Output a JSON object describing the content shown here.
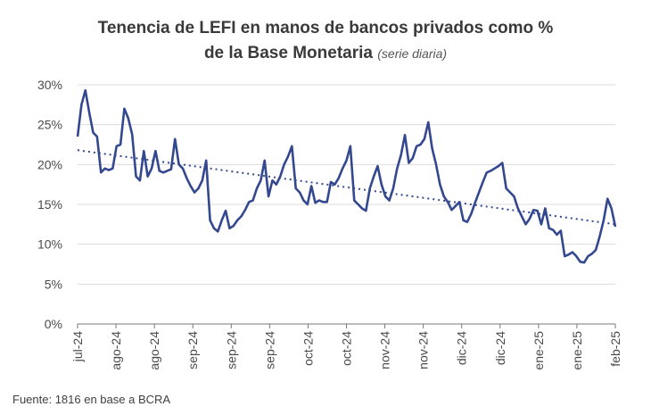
{
  "chart_data": {
    "type": "line",
    "title_line1": "Tenencia de LEFI en manos de bancos privados como %",
    "title_line2": "de la Base Monetaria",
    "title_note": "(serie diaria)",
    "source": "Fuente: 1816 en base a BCRA",
    "ylim": [
      0,
      30
    ],
    "y_ticks": [
      0,
      5,
      10,
      15,
      20,
      25,
      30
    ],
    "y_tick_labels": [
      "0%",
      "5%",
      "10%",
      "15%",
      "20%",
      "25%",
      "30%"
    ],
    "x_ticks": [
      0,
      10,
      20,
      30,
      40,
      50,
      60,
      70,
      80,
      90,
      100,
      110,
      120,
      130,
      140
    ],
    "x_tick_labels": [
      "jul-24",
      "ago-24",
      "ago-24",
      "sep-24",
      "sep-24",
      "sep-24",
      "oct-24",
      "oct-24",
      "nov-24",
      "nov-24",
      "dic-24",
      "dic-24",
      "ene-25",
      "ene-25",
      "feb-25"
    ],
    "xlim": [
      0,
      140
    ],
    "grid": true,
    "line_color": "#34488f",
    "trend_color": "#34488f",
    "series": [
      {
        "values": [
          23.5,
          27.5,
          29.3,
          26.5,
          24,
          23.5,
          19,
          19.5,
          19.3,
          19.5,
          22.3,
          22.5,
          27,
          25.8,
          23.8,
          18.5,
          18,
          21.7,
          18.5,
          19.5,
          21.7,
          19.2,
          19,
          19.2,
          19.4,
          23.2,
          20,
          19.5,
          18.3,
          17.3,
          16.5,
          17,
          18,
          20.5,
          13,
          12,
          11.6,
          13,
          14.2,
          12,
          12.3,
          13,
          13.5,
          14.3,
          15.3,
          15.5,
          17,
          18,
          20.5,
          16,
          18,
          17.5,
          18.5,
          20,
          21,
          22.3,
          17,
          16.5,
          15.5,
          15,
          17.3,
          15.2,
          15.5,
          15.3,
          15.3,
          17.8,
          17.5,
          18.3,
          19.5,
          20.5,
          22.3,
          15.5,
          15,
          14.5,
          14.2,
          17,
          18.5,
          19.8,
          17.5,
          16,
          15.5,
          17,
          19.5,
          21.2,
          23.7,
          20.2,
          20.8,
          22.3,
          22.5,
          23.2,
          25.3,
          22,
          20,
          17.5,
          16,
          15.3,
          14.3,
          14.8,
          15.3,
          13,
          12.8,
          13.8,
          15.2,
          16.5,
          17.8,
          19,
          19.2,
          19.5,
          19.8,
          20.2,
          17,
          16.5,
          16,
          14.5,
          13.5,
          12.5,
          13.2,
          14.3,
          14.2,
          12.5,
          14.5,
          12,
          11.8,
          11.2,
          11.7,
          8.5,
          8.7,
          9,
          8.5,
          7.8,
          7.7,
          8.5,
          8.8,
          9.3,
          11,
          13,
          15.7,
          14.5,
          12.2
        ]
      }
    ],
    "trend": {
      "start": 21.8,
      "end": 12.5
    }
  }
}
